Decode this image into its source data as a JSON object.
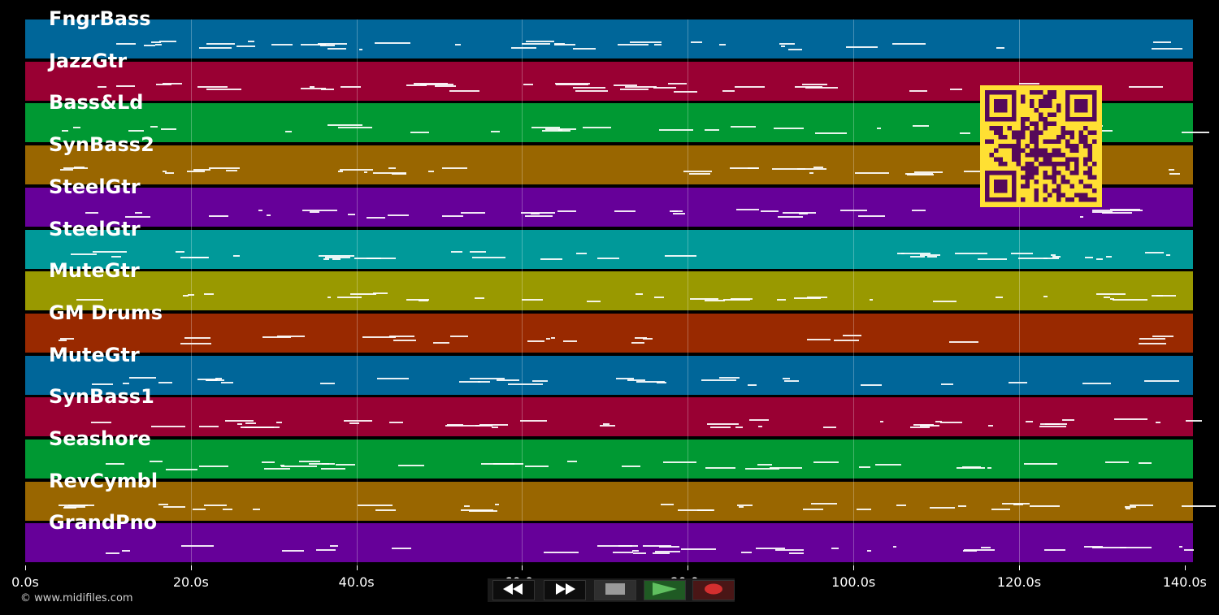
{
  "tracks": [
    {
      "name": "FngrBass",
      "color": "#006699"
    },
    {
      "name": "JazzGtr",
      "color": "#990033"
    },
    {
      "name": "Bass&Ld",
      "color": "#009933"
    },
    {
      "name": "SynBass2",
      "color": "#996600"
    },
    {
      "name": "SteelGtr",
      "color": "#660099"
    },
    {
      "name": "SteelGtr",
      "color": "#009999"
    },
    {
      "name": "MuteGtr",
      "color": "#999900"
    },
    {
      "name": "GM Drums",
      "color": "#992900"
    },
    {
      "name": "MuteGtr",
      "color": "#006699"
    },
    {
      "name": "SynBass1",
      "color": "#990033"
    },
    {
      "name": "Seashore",
      "color": "#009933"
    },
    {
      "name": "RevCymbl",
      "color": "#996600"
    },
    {
      "name": "GrandPno",
      "color": "#660099"
    }
  ],
  "timeline": {
    "ticks": [
      "0.0s",
      "20.0s",
      "40.0s",
      "60.0s",
      "80.0s",
      "100.0s",
      "120.0s",
      "140.0s"
    ],
    "max_seconds": 141
  },
  "footer": {
    "copyright": "© www.midifiles.com"
  },
  "transport": {
    "rewind_icon": "rewind-icon",
    "forward_icon": "fast-forward-icon",
    "stop_icon": "stop-icon",
    "play_icon": "play-icon",
    "record_icon": "record-icon",
    "colors": {
      "play": "#4caf50",
      "record": "#d32f2f",
      "stop": "#888888"
    }
  },
  "overlay": {
    "qr_color": "#ffe033",
    "qr_dark": "#55095a"
  }
}
